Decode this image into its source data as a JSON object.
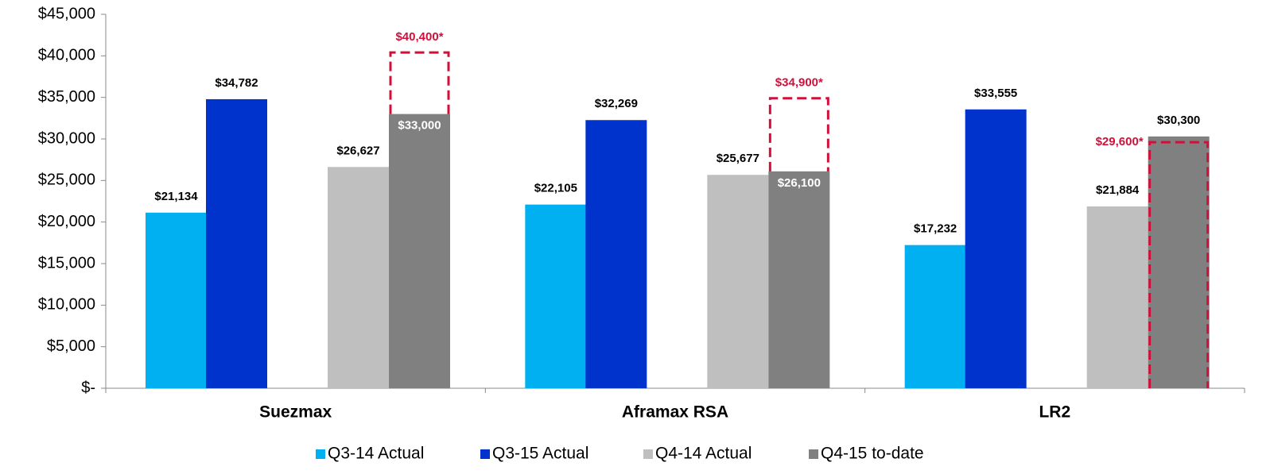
{
  "chart_data": {
    "type": "bar",
    "categories": [
      "Suezmax",
      "Aframax RSA",
      "LR2"
    ],
    "series": [
      {
        "name": "Q3-14 Actual",
        "color": "#00b0f0",
        "values": [
          21134,
          22105,
          17232
        ],
        "value_labels": [
          "$21,134",
          "$22,105",
          "$17,232"
        ]
      },
      {
        "name": "Q3-15 Actual",
        "color": "#0033cc",
        "values": [
          34782,
          32269,
          33555
        ],
        "value_labels": [
          "$34,782",
          "$32,269",
          "$33,555"
        ]
      },
      {
        "name": "Q4-14 Actual",
        "color": "#bfbfbf",
        "values": [
          26627,
          25677,
          21884
        ],
        "value_labels": [
          "$26,627",
          "$25,677",
          "$21,884"
        ]
      },
      {
        "name": "Q4-15 to-date",
        "color": "#808080",
        "values": [
          33000,
          26100,
          30300
        ],
        "value_labels": [
          "$33,000",
          "$26,100",
          "$30,300"
        ]
      }
    ],
    "estimates": {
      "color": "#d0103a",
      "values": [
        40400,
        34900,
        29600
      ],
      "value_labels": [
        "$40,400*",
        "$34,900*",
        "$29,600*"
      ]
    },
    "ylim": [
      0,
      45000
    ],
    "yticks": [
      {
        "value": 0,
        "label": "$-"
      },
      {
        "value": 5000,
        "label": "$5,000"
      },
      {
        "value": 10000,
        "label": "$10,000"
      },
      {
        "value": 15000,
        "label": "$15,000"
      },
      {
        "value": 20000,
        "label": "$20,000"
      },
      {
        "value": 25000,
        "label": "$25,000"
      },
      {
        "value": 30000,
        "label": "$30,000"
      },
      {
        "value": 35000,
        "label": "$35,000"
      },
      {
        "value": 40000,
        "label": "$40,000"
      },
      {
        "value": 45000,
        "label": "$45,000"
      }
    ],
    "legend": "bottom"
  }
}
